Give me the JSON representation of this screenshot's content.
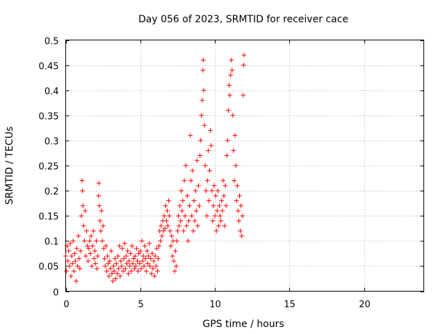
{
  "chart_data": {
    "type": "scatter",
    "title": "Day 056 of 2023, SRMTID for receiver cace",
    "xlabel": "GPS time / hours",
    "ylabel": "SRMTID / TECUs",
    "xlim": [
      0,
      24
    ],
    "ylim": [
      0,
      0.5
    ],
    "x_ticks": [
      "0",
      "5",
      "10",
      "15",
      "20"
    ],
    "y_ticks": [
      "0",
      "0.05",
      "0.1",
      "0.15",
      "0.2",
      "0.25",
      "0.3",
      "0.35",
      "0.4",
      "0.45",
      "0.5"
    ],
    "grid": true,
    "marker": "+",
    "color": "#ff0000",
    "series": [
      {
        "name": "SRMTID",
        "points": [
          [
            0.0,
            0.07
          ],
          [
            0.05,
            0.04
          ],
          [
            0.1,
            0.09
          ],
          [
            0.15,
            0.06
          ],
          [
            0.2,
            0.08
          ],
          [
            0.25,
            0.05
          ],
          [
            0.3,
            0.095
          ],
          [
            0.35,
            0.03
          ],
          [
            0.4,
            0.07
          ],
          [
            0.45,
            0.055
          ],
          [
            0.5,
            0.1
          ],
          [
            0.55,
            0.04
          ],
          [
            0.6,
            0.075
          ],
          [
            0.65,
            0.06
          ],
          [
            0.7,
            0.02
          ],
          [
            0.75,
            0.085
          ],
          [
            0.8,
            0.05
          ],
          [
            0.85,
            0.11
          ],
          [
            0.9,
            0.065
          ],
          [
            0.95,
            0.045
          ],
          [
            1.0,
            0.08
          ],
          [
            1.05,
            0.15
          ],
          [
            1.1,
            0.22
          ],
          [
            1.12,
            0.2
          ],
          [
            1.15,
            0.17
          ],
          [
            1.2,
            0.13
          ],
          [
            1.25,
            0.1
          ],
          [
            1.3,
            0.16
          ],
          [
            1.35,
            0.07
          ],
          [
            1.4,
            0.12
          ],
          [
            1.45,
            0.09
          ],
          [
            1.5,
            0.06
          ],
          [
            1.55,
            0.085
          ],
          [
            1.6,
            0.1
          ],
          [
            1.65,
            0.075
          ],
          [
            1.7,
            0.11
          ],
          [
            1.75,
            0.05
          ],
          [
            1.8,
            0.09
          ],
          [
            1.85,
            0.12
          ],
          [
            1.9,
            0.065
          ],
          [
            1.95,
            0.08
          ],
          [
            2.0,
            0.055
          ],
          [
            2.05,
            0.1
          ],
          [
            2.1,
            0.045
          ],
          [
            2.15,
            0.07
          ],
          [
            2.2,
            0.19
          ],
          [
            2.22,
            0.215
          ],
          [
            2.25,
            0.17
          ],
          [
            2.3,
            0.14
          ],
          [
            2.35,
            0.12
          ],
          [
            2.4,
            0.16
          ],
          [
            2.45,
            0.1
          ],
          [
            2.5,
            0.13
          ],
          [
            2.55,
            0.085
          ],
          [
            2.6,
            0.065
          ],
          [
            2.65,
            0.05
          ],
          [
            2.7,
            0.09
          ],
          [
            2.75,
            0.04
          ],
          [
            2.8,
            0.07
          ],
          [
            2.85,
            0.055
          ],
          [
            2.9,
            0.03
          ],
          [
            2.95,
            0.06
          ],
          [
            3.0,
            0.045
          ],
          [
            3.05,
            0.08
          ],
          [
            3.1,
            0.035
          ],
          [
            3.15,
            0.02
          ],
          [
            3.2,
            0.05
          ],
          [
            3.25,
            0.04
          ],
          [
            3.3,
            0.065
          ],
          [
            3.35,
            0.025
          ],
          [
            3.4,
            0.055
          ],
          [
            3.45,
            0.035
          ],
          [
            3.5,
            0.07
          ],
          [
            3.55,
            0.045
          ],
          [
            3.6,
            0.09
          ],
          [
            3.65,
            0.03
          ],
          [
            3.7,
            0.06
          ],
          [
            3.75,
            0.05
          ],
          [
            3.8,
            0.085
          ],
          [
            3.85,
            0.04
          ],
          [
            3.9,
            0.065
          ],
          [
            3.95,
            0.095
          ],
          [
            4.0,
            0.045
          ],
          [
            4.05,
            0.07
          ],
          [
            4.1,
            0.055
          ],
          [
            4.15,
            0.08
          ],
          [
            4.2,
            0.035
          ],
          [
            4.25,
            0.06
          ],
          [
            4.3,
            0.05
          ],
          [
            4.35,
            0.075
          ],
          [
            4.4,
            0.04
          ],
          [
            4.45,
            0.09
          ],
          [
            4.5,
            0.055
          ],
          [
            4.55,
            0.065
          ],
          [
            4.6,
            0.045
          ],
          [
            4.65,
            0.07
          ],
          [
            4.7,
            0.05
          ],
          [
            4.75,
            0.085
          ],
          [
            4.8,
            0.06
          ],
          [
            4.85,
            0.04
          ],
          [
            4.9,
            0.075
          ],
          [
            4.95,
            0.055
          ],
          [
            5.0,
            0.08
          ],
          [
            5.05,
            0.045
          ],
          [
            5.1,
            0.1
          ],
          [
            5.15,
            0.06
          ],
          [
            5.2,
            0.07
          ],
          [
            5.25,
            0.05
          ],
          [
            5.3,
            0.09
          ],
          [
            5.35,
            0.065
          ],
          [
            5.4,
            0.04
          ],
          [
            5.45,
            0.08
          ],
          [
            5.5,
            0.055
          ],
          [
            5.55,
            0.07
          ],
          [
            5.6,
            0.095
          ],
          [
            5.65,
            0.05
          ],
          [
            5.7,
            0.065
          ],
          [
            5.75,
            0.035
          ],
          [
            5.8,
            0.075
          ],
          [
            5.85,
            0.045
          ],
          [
            5.9,
            0.06
          ],
          [
            5.95,
            0.03
          ],
          [
            6.0,
            0.07
          ],
          [
            6.05,
            0.05
          ],
          [
            6.1,
            0.085
          ],
          [
            6.15,
            0.04
          ],
          [
            6.2,
            0.065
          ],
          [
            6.25,
            0.09
          ],
          [
            6.3,
            0.12
          ],
          [
            6.35,
            0.1
          ],
          [
            6.4,
            0.13
          ],
          [
            6.45,
            0.11
          ],
          [
            6.5,
            0.14
          ],
          [
            6.55,
            0.12
          ],
          [
            6.6,
            0.15
          ],
          [
            6.65,
            0.125
          ],
          [
            6.7,
            0.17
          ],
          [
            6.75,
            0.14
          ],
          [
            6.8,
            0.16
          ],
          [
            6.85,
            0.13
          ],
          [
            6.9,
            0.18
          ],
          [
            6.95,
            0.15
          ],
          [
            7.0,
            0.12
          ],
          [
            7.05,
            0.09
          ],
          [
            7.1,
            0.11
          ],
          [
            7.15,
            0.07
          ],
          [
            7.2,
            0.1
          ],
          [
            7.25,
            0.06
          ],
          [
            7.3,
            0.04
          ],
          [
            7.35,
            0.08
          ],
          [
            7.4,
            0.05
          ],
          [
            7.45,
            0.1
          ],
          [
            7.5,
            0.12
          ],
          [
            7.55,
            0.15
          ],
          [
            7.6,
            0.13
          ],
          [
            7.65,
            0.17
          ],
          [
            7.7,
            0.14
          ],
          [
            7.75,
            0.2
          ],
          [
            7.8,
            0.16
          ],
          [
            7.85,
            0.18
          ],
          [
            7.9,
            0.12
          ],
          [
            7.95,
            0.22
          ],
          [
            8.0,
            0.15
          ],
          [
            8.05,
            0.25
          ],
          [
            8.1,
            0.13
          ],
          [
            8.15,
            0.19
          ],
          [
            8.2,
            0.1
          ],
          [
            8.25,
            0.14
          ],
          [
            8.3,
            0.17
          ],
          [
            8.35,
            0.31
          ],
          [
            8.4,
            0.22
          ],
          [
            8.45,
            0.15
          ],
          [
            8.5,
            0.24
          ],
          [
            8.55,
            0.12
          ],
          [
            8.6,
            0.18
          ],
          [
            8.65,
            0.14
          ],
          [
            8.7,
            0.2
          ],
          [
            8.75,
            0.16
          ],
          [
            8.8,
            0.26
          ],
          [
            8.85,
            0.13
          ],
          [
            8.9,
            0.21
          ],
          [
            8.95,
            0.17
          ],
          [
            9.0,
            0.27
          ],
          [
            9.05,
            0.3
          ],
          [
            9.1,
            0.35
          ],
          [
            9.15,
            0.38
          ],
          [
            9.2,
            0.44
          ],
          [
            9.22,
            0.46
          ],
          [
            9.25,
            0.4
          ],
          [
            9.3,
            0.33
          ],
          [
            9.35,
            0.25
          ],
          [
            9.4,
            0.2
          ],
          [
            9.45,
            0.15
          ],
          [
            9.5,
            0.22
          ],
          [
            9.55,
            0.28
          ],
          [
            9.6,
            0.18
          ],
          [
            9.65,
            0.24
          ],
          [
            9.7,
            0.32
          ],
          [
            9.75,
            0.29
          ],
          [
            9.8,
            0.2
          ],
          [
            9.85,
            0.14
          ],
          [
            9.9,
            0.17
          ],
          [
            9.95,
            0.21
          ],
          [
            10.0,
            0.15
          ],
          [
            10.05,
            0.19
          ],
          [
            10.1,
            0.12
          ],
          [
            10.15,
            0.16
          ],
          [
            10.2,
            0.2
          ],
          [
            10.25,
            0.13
          ],
          [
            10.3,
            0.17
          ],
          [
            10.35,
            0.15
          ],
          [
            10.4,
            0.14
          ],
          [
            10.45,
            0.18
          ],
          [
            10.5,
            0.16
          ],
          [
            10.55,
            0.22
          ],
          [
            10.6,
            0.19
          ],
          [
            10.65,
            0.13
          ],
          [
            10.7,
            0.21
          ],
          [
            10.75,
            0.17
          ],
          [
            10.8,
            0.27
          ],
          [
            10.85,
            0.3
          ],
          [
            10.9,
            0.36
          ],
          [
            10.95,
            0.41
          ],
          [
            11.0,
            0.39
          ],
          [
            11.05,
            0.43
          ],
          [
            11.1,
            0.46
          ],
          [
            11.15,
            0.44
          ],
          [
            11.2,
            0.35
          ],
          [
            11.25,
            0.28
          ],
          [
            11.3,
            0.22
          ],
          [
            11.35,
            0.31
          ],
          [
            11.4,
            0.25
          ],
          [
            11.45,
            0.18
          ],
          [
            11.5,
            0.21
          ],
          [
            11.55,
            0.16
          ],
          [
            11.6,
            0.14
          ],
          [
            11.65,
            0.19
          ],
          [
            11.7,
            0.12
          ],
          [
            11.75,
            0.17
          ],
          [
            11.8,
            0.11
          ],
          [
            11.85,
            0.15
          ],
          [
            11.9,
            0.39
          ],
          [
            11.92,
            0.45
          ],
          [
            11.95,
            0.47
          ]
        ]
      }
    ]
  }
}
